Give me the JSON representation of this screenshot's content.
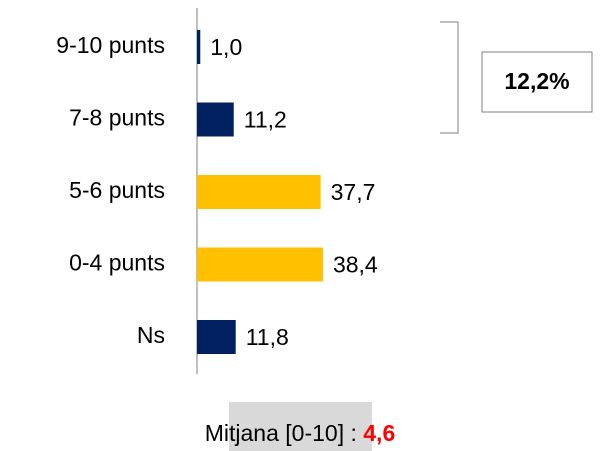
{
  "chart_data": {
    "type": "hbar",
    "categories": [
      "9-10 punts",
      "7-8 punts",
      "5-6 punts",
      "0-4 punts",
      "Ns"
    ],
    "values": [
      1.0,
      11.2,
      37.7,
      38.4,
      11.8
    ],
    "value_labels": [
      "1,0",
      "11,2",
      "37,7",
      "38,4",
      "11,8"
    ],
    "colors": [
      "#002060",
      "#002060",
      "#ffc000",
      "#ffc000",
      "#002060"
    ],
    "xlim": [
      0,
      100
    ],
    "annotation": "12,2%",
    "footer_label": "Mitjana [0-10] : ",
    "footer_value": "4,6"
  }
}
